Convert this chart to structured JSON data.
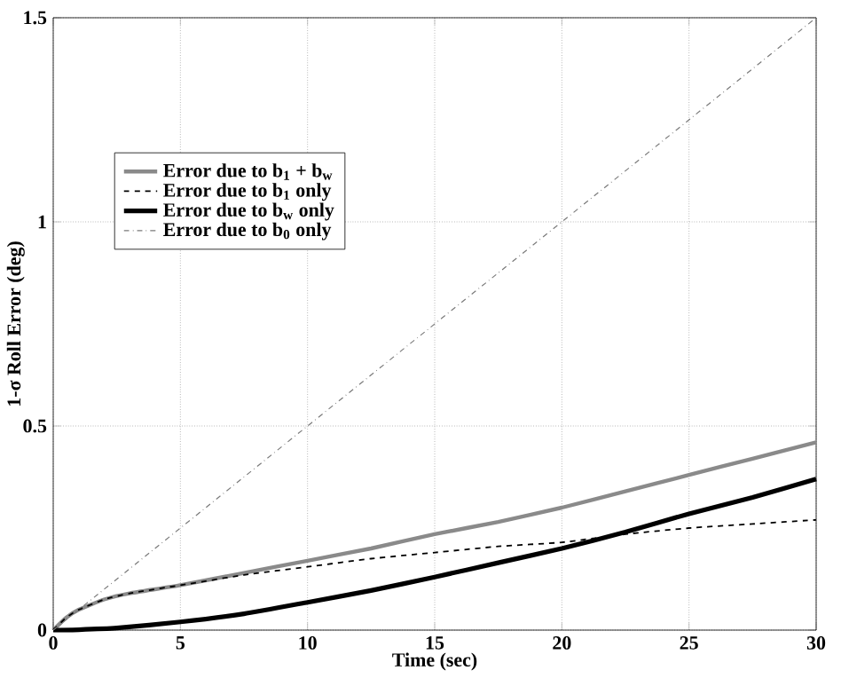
{
  "chart_data": {
    "type": "line",
    "xlabel": "Time (sec)",
    "ylabel": "1-σ Roll Error (deg)",
    "xlim": [
      0,
      30
    ],
    "xticks": [
      0,
      5,
      10,
      15,
      20,
      25,
      30
    ],
    "ylim": [
      0,
      1.5
    ],
    "yticks": [
      0,
      0.5,
      1,
      1.5
    ],
    "grid": true,
    "legend": "left",
    "series": [
      {
        "name": "Error due to b$_{1}$ + b$_{w}$",
        "color": "#8a8a8a",
        "line_style": "solid",
        "x": [
          0,
          0.5,
          1,
          2,
          3,
          5,
          7.5,
          10,
          12.5,
          15,
          17.5,
          20,
          22.5,
          25,
          27.5,
          30
        ],
        "values": [
          0,
          0.03,
          0.05,
          0.075,
          0.09,
          0.11,
          0.14,
          0.17,
          0.2,
          0.235,
          0.265,
          0.3,
          0.34,
          0.38,
          0.42,
          0.46
        ]
      },
      {
        "name": "Error due to b$_{1}$ only",
        "color": "#000000",
        "line_style": "dashed",
        "x": [
          0,
          0.5,
          1,
          2,
          3,
          5,
          7.5,
          10,
          12.5,
          15,
          17.5,
          20,
          22.5,
          25,
          27.5,
          30
        ],
        "values": [
          0,
          0.03,
          0.05,
          0.075,
          0.09,
          0.11,
          0.135,
          0.155,
          0.175,
          0.19,
          0.205,
          0.215,
          0.235,
          0.25,
          0.26,
          0.27
        ]
      },
      {
        "name": "Error due to b$_{w}$ only",
        "color": "#000000",
        "line_style": "solid",
        "x": [
          0,
          1,
          2.5,
          5,
          7.5,
          10,
          12.5,
          15,
          17.5,
          20,
          22.5,
          25,
          27.5,
          30
        ],
        "values": [
          0,
          0.001,
          0.005,
          0.02,
          0.04,
          0.068,
          0.097,
          0.13,
          0.165,
          0.2,
          0.24,
          0.285,
          0.325,
          0.37
        ]
      },
      {
        "name": "Error due to b$_{0}$ only",
        "color": "#7a7a7a",
        "line_style": "dashed",
        "x": [
          0,
          30
        ],
        "values": [
          0,
          1.5
        ]
      }
    ]
  }
}
